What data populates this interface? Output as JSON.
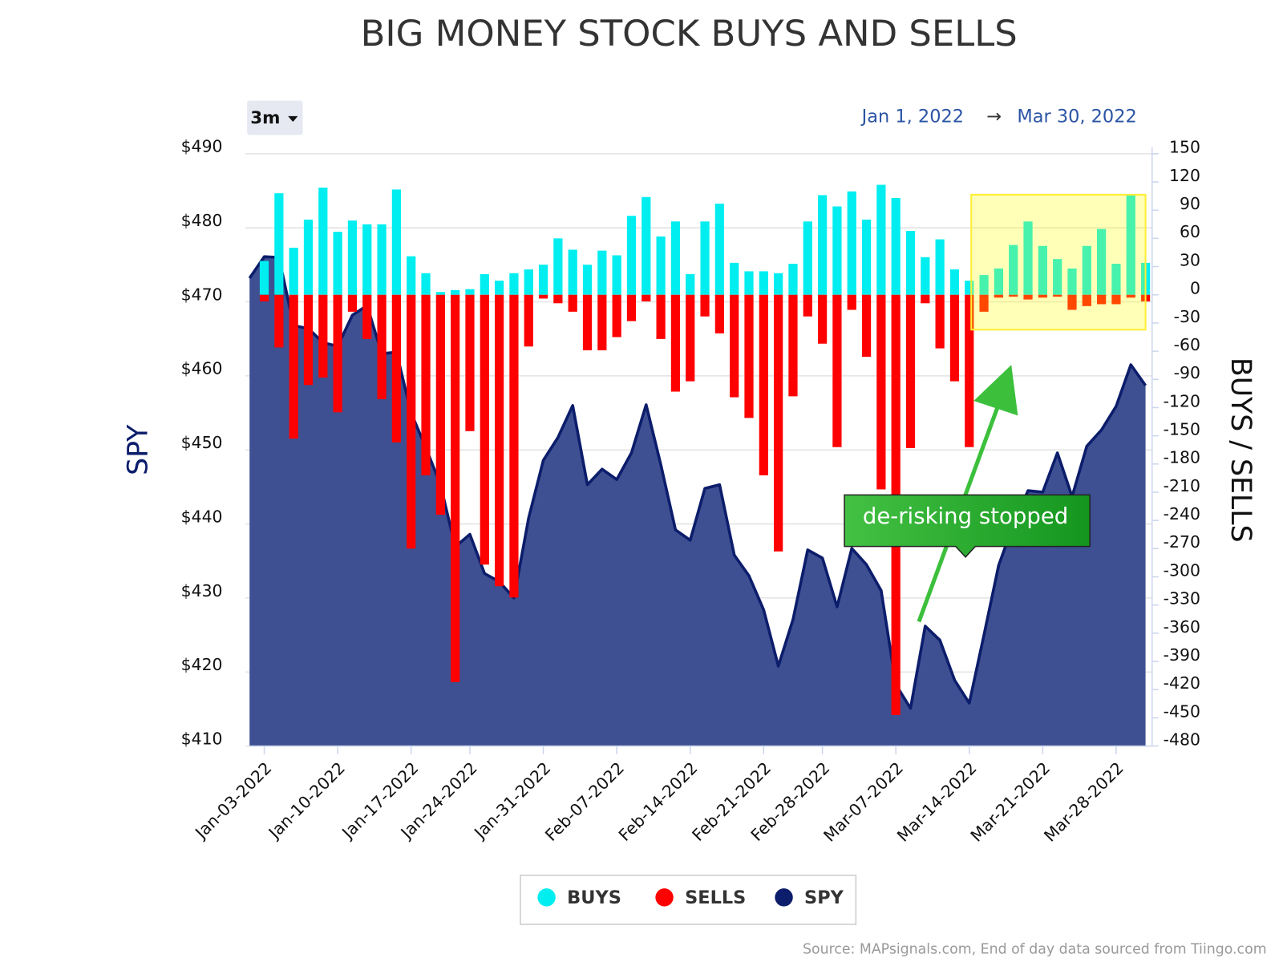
{
  "chart_data": {
    "type": "bar",
    "title": "BIG MONEY STOCK BUYS AND SELLS",
    "range_selector": "3m",
    "date_range": {
      "from": "Jan 1, 2022",
      "arrow": "→",
      "to": "Mar 30, 2022"
    },
    "ylabel": "SPY",
    "y2label": "BUYS / SELLS",
    "annotation": "de-risking stopped",
    "source": "Source: MAPsignals.com, End of day data sourced from Tiingo.com",
    "categories": [
      null,
      "Jan-03-2022",
      null,
      null,
      null,
      null,
      "Jan-10-2022",
      null,
      null,
      null,
      null,
      "Jan-17-2022",
      null,
      null,
      null,
      "Jan-24-2022",
      null,
      null,
      null,
      null,
      "Jan-31-2022",
      null,
      null,
      null,
      null,
      "Feb-07-2022",
      null,
      null,
      null,
      null,
      "Feb-14-2022",
      null,
      null,
      null,
      null,
      "Feb-21-2022",
      null,
      null,
      null,
      "Feb-28-2022",
      null,
      null,
      null,
      null,
      "Mar-07-2022",
      null,
      null,
      null,
      null,
      "Mar-14-2022",
      null,
      null,
      null,
      null,
      "Mar-21-2022",
      null,
      null,
      null,
      null,
      "Mar-28-2022",
      null,
      null
    ],
    "series": [
      {
        "name": "BUYS",
        "type": "bar",
        "axis": "y2",
        "color": "#00eef0",
        "values": [
          null,
          36,
          108,
          50,
          80,
          114,
          67,
          79,
          75,
          75,
          112,
          41,
          23,
          3,
          5,
          6,
          22,
          15,
          23,
          27,
          32,
          60,
          48,
          32,
          47,
          42,
          84,
          104,
          62,
          78,
          22,
          78,
          97,
          34,
          25,
          25,
          23,
          33,
          78,
          106,
          94,
          110,
          80,
          117,
          103,
          68,
          40,
          59,
          27,
          15,
          21,
          28,
          53,
          78,
          52,
          38,
          28,
          52,
          70,
          33,
          106,
          34
        ]
      },
      {
        "name": "SELLS",
        "type": "bar",
        "axis": "y2",
        "color": "#ff0000",
        "values": [
          null,
          -7,
          -56,
          -153,
          -96,
          -88,
          -125,
          -18,
          -47,
          -111,
          -157,
          -270,
          -192,
          -234,
          -412,
          -145,
          -287,
          -310,
          -322,
          -55,
          -4,
          -9,
          -18,
          -59,
          -59,
          -45,
          -28,
          -7,
          -47,
          -103,
          -92,
          -23,
          -41,
          -109,
          -131,
          -192,
          -273,
          -108,
          -23,
          -52,
          -162,
          -16,
          -66,
          -207,
          -447,
          -163,
          -9,
          -57,
          -92,
          -162,
          -18,
          -3,
          -2,
          -5,
          -3,
          -2,
          -16,
          -12,
          -10,
          -10,
          -3,
          -7
        ]
      },
      {
        "name": "SPY",
        "type": "area",
        "color": "#0c1d6b",
        "fill": "#3e5092",
        "values": [
          473.2,
          476.1,
          476.0,
          466.8,
          466.4,
          464.5,
          464.0,
          468.2,
          469.5,
          463.0,
          463.2,
          455.0,
          450.3,
          445.3,
          436.9,
          438.6,
          433.3,
          432.2,
          430.0,
          440.8,
          448.6,
          451.7,
          456.0,
          445.3,
          447.4,
          446.0,
          449.6,
          456.1,
          448.0,
          439.2,
          437.8,
          444.8,
          445.3,
          435.8,
          433.0,
          428.4,
          420.8,
          427.1,
          436.5,
          435.4,
          428.8,
          436.7,
          434.5,
          431.0,
          418.3,
          415.1,
          426.2,
          424.3,
          418.9,
          415.8,
          425.0,
          434.4,
          439.9,
          444.5,
          444.3,
          449.6,
          443.7,
          450.5,
          452.7,
          455.9,
          461.5,
          458.7
        ]
      }
    ],
    "ylim": [
      410,
      490
    ],
    "yticks": [
      {
        "value": 410,
        "label": "$410"
      },
      {
        "value": 420,
        "label": "$420"
      },
      {
        "value": 430,
        "label": "$430"
      },
      {
        "value": 440,
        "label": "$440"
      },
      {
        "value": 450,
        "label": "$450"
      },
      {
        "value": 460,
        "label": "$460"
      },
      {
        "value": 470,
        "label": "$470"
      },
      {
        "value": 480,
        "label": "$480"
      },
      {
        "value": 490,
        "label": "$490"
      }
    ],
    "y2lim": [
      -480,
      150
    ],
    "y2ticks": [
      -480,
      -450,
      -420,
      -390,
      -360,
      -330,
      -300,
      -270,
      -240,
      -210,
      -180,
      -150,
      -120,
      -90,
      -60,
      -30,
      0,
      30,
      60,
      90,
      120,
      150
    ],
    "grid": true,
    "legend": "bottom"
  }
}
